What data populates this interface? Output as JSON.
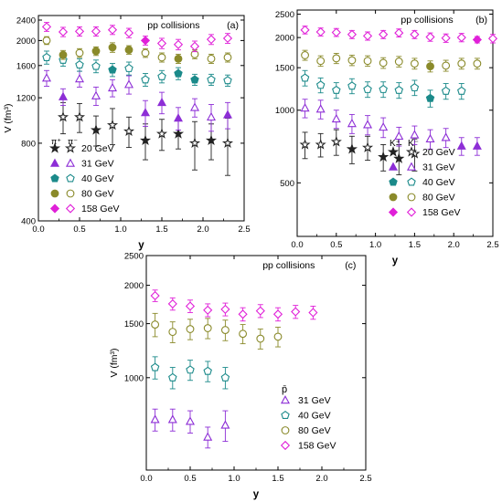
{
  "chart_data": [
    {
      "panel_label": "(a)",
      "type": "scatter",
      "title": "pp collisions",
      "xlabel": "y",
      "ylabel": "V (fm³)",
      "xlim": [
        0,
        2.5
      ],
      "ylim": [
        400,
        2500
      ],
      "yscale": "log",
      "xticks": [
        0.0,
        0.5,
        1.0,
        1.5,
        2.0,
        2.5
      ],
      "xtick_labels": [
        "0.0",
        "0.5",
        "1.0",
        "1.5",
        "2.0",
        "2.5"
      ],
      "yticks": [
        400,
        800,
        1200,
        1600,
        2000,
        2400
      ],
      "ytick_labels": [
        "400",
        "800",
        "1200",
        "1600",
        "2000",
        "2400"
      ],
      "legend_header": [
        "π⁺",
        "π⁻"
      ],
      "legend_placement": "lower-left",
      "series": [
        {
          "name": "20 GeV",
          "color": "#222222",
          "marker": "star",
          "filled": true,
          "x": [
            0.7,
            1.3,
            1.7,
            2.1
          ],
          "y": [
            900,
            820,
            870,
            820
          ],
          "err": [
            120,
            130,
            110,
            130
          ]
        },
        {
          "name": "20 GeV",
          "color": "#222222",
          "marker": "star",
          "filled": false,
          "x": [
            0.3,
            0.5,
            0.9,
            1.1,
            1.5,
            1.9,
            2.3
          ],
          "y": [
            1010,
            1010,
            940,
            890,
            870,
            800,
            800
          ],
          "err": [
            140,
            130,
            150,
            120,
            120,
            170,
            200
          ]
        },
        {
          "name": "31 GeV",
          "color": "#8d2ed6",
          "marker": "triangle",
          "filled": true,
          "x": [
            0.3,
            1.3,
            1.5,
            1.7,
            2.3
          ],
          "y": [
            1210,
            1050,
            1150,
            1000,
            1030
          ],
          "err": [
            90,
            120,
            110,
            100,
            120
          ]
        },
        {
          "name": "31 GeV",
          "color": "#8d2ed6",
          "marker": "triangle",
          "filled": false,
          "x": [
            0.1,
            0.5,
            0.7,
            0.9,
            1.1,
            1.9,
            2.1
          ],
          "y": [
            1430,
            1420,
            1220,
            1310,
            1350,
            1100,
            1010
          ],
          "err": [
            100,
            100,
            100,
            100,
            110,
            90,
            120
          ]
        },
        {
          "name": "40 GeV",
          "color": "#1b8a8a",
          "marker": "pentagon",
          "filled": true,
          "x": [
            0.9,
            1.7,
            1.9
          ],
          "y": [
            1540,
            1490,
            1410
          ],
          "err": [
            90,
            80,
            70
          ]
        },
        {
          "name": "40 GeV",
          "color": "#1b8a8a",
          "marker": "pentagon",
          "filled": false,
          "x": [
            0.1,
            0.3,
            0.5,
            0.7,
            1.1,
            1.3,
            1.5,
            2.1,
            2.3
          ],
          "y": [
            1720,
            1680,
            1610,
            1590,
            1560,
            1410,
            1450,
            1410,
            1400
          ],
          "err": [
            100,
            90,
            90,
            90,
            90,
            80,
            80,
            70,
            70
          ]
        },
        {
          "name": "80 GeV",
          "color": "#8a8a2a",
          "marker": "circle",
          "filled": true,
          "x": [
            0.3,
            0.7,
            0.9,
            1.1,
            1.7
          ],
          "y": [
            1760,
            1820,
            1880,
            1840,
            1700
          ],
          "err": [
            70,
            70,
            80,
            70,
            70
          ]
        },
        {
          "name": "80 GeV",
          "color": "#8a8a2a",
          "marker": "circle",
          "filled": false,
          "x": [
            0.1,
            0.5,
            1.3,
            1.5,
            1.9,
            2.1,
            2.3
          ],
          "y": [
            2000,
            1790,
            1790,
            1720,
            1770,
            1700,
            1720
          ],
          "err": [
            70,
            70,
            70,
            70,
            70,
            70,
            70
          ]
        },
        {
          "name": "158 GeV",
          "color": "#e020d8",
          "marker": "diamond",
          "filled": true,
          "x": [
            1.3
          ],
          "y": [
            2000
          ],
          "err": [
            80
          ]
        },
        {
          "name": "158 GeV",
          "color": "#e020d8",
          "marker": "diamond",
          "filled": false,
          "x": [
            0.1,
            0.3,
            0.5,
            0.7,
            0.9,
            1.1,
            1.5,
            1.7,
            1.9,
            2.1,
            2.3
          ],
          "y": [
            2260,
            2160,
            2170,
            2170,
            2200,
            2140,
            1950,
            1930,
            1900,
            2020,
            2040
          ],
          "err": [
            90,
            90,
            90,
            90,
            90,
            90,
            90,
            90,
            90,
            90,
            90
          ]
        }
      ],
      "legend": [
        {
          "label": "20 GeV",
          "marker": "star",
          "color": "#222222"
        },
        {
          "label": "31 GeV",
          "marker": "triangle",
          "color": "#8d2ed6"
        },
        {
          "label": "40 GeV",
          "marker": "pentagon",
          "color": "#1b8a8a"
        },
        {
          "label": "80 GeV",
          "marker": "circle",
          "color": "#8a8a2a"
        },
        {
          "label": "158 GeV",
          "marker": "diamond",
          "color": "#e020d8"
        }
      ]
    },
    {
      "panel_label": "(b)",
      "type": "scatter",
      "title": "pp collisions",
      "xlabel": "y",
      "ylabel": "",
      "xlim": [
        0,
        2.5
      ],
      "ylim": [
        300,
        2600
      ],
      "yscale": "log",
      "xticks": [
        0.0,
        0.5,
        1.0,
        1.5,
        2.0,
        2.5
      ],
      "xtick_labels": [
        "0.0",
        "0.5",
        "1.0",
        "1.5",
        "2.0",
        "2.5"
      ],
      "yticks": [
        500,
        1000,
        1500,
        2000,
        2500
      ],
      "ytick_labels": [
        "500",
        "1000",
        "1500",
        "2000",
        "2500"
      ],
      "legend_header": [
        "K⁺",
        "K⁻"
      ],
      "legend_placement": "lower-right",
      "series": [
        {
          "name": "20 GeV",
          "color": "#222222",
          "marker": "star",
          "filled": true,
          "x": [
            0.7,
            1.1,
            1.3
          ],
          "y": [
            690,
            640,
            630
          ],
          "err": [
            90,
            80,
            90
          ]
        },
        {
          "name": "20 GeV",
          "color": "#222222",
          "marker": "star",
          "filled": false,
          "x": [
            0.1,
            0.3,
            0.5,
            0.9,
            1.5
          ],
          "y": [
            720,
            720,
            740,
            700,
            660
          ],
          "err": [
            90,
            80,
            90,
            80,
            100
          ]
        },
        {
          "name": "31 GeV",
          "color": "#8d2ed6",
          "marker": "triangle",
          "filled": true,
          "x": [
            2.1,
            2.3
          ],
          "y": [
            710,
            710
          ],
          "err": [
            60,
            60
          ]
        },
        {
          "name": "31 GeV",
          "color": "#8d2ed6",
          "marker": "triangle",
          "filled": false,
          "x": [
            0.1,
            0.3,
            0.5,
            0.7,
            0.9,
            1.1,
            1.3,
            1.5,
            1.7,
            1.9
          ],
          "y": [
            1020,
            1010,
            920,
            880,
            870,
            850,
            780,
            790,
            760,
            770
          ],
          "err": [
            90,
            90,
            80,
            80,
            80,
            80,
            70,
            70,
            70,
            70
          ]
        },
        {
          "name": "40 GeV",
          "color": "#1b8a8a",
          "marker": "pentagon",
          "filled": true,
          "x": [
            1.7
          ],
          "y": [
            1120
          ],
          "err": [
            90
          ]
        },
        {
          "name": "40 GeV",
          "color": "#1b8a8a",
          "marker": "pentagon",
          "filled": false,
          "x": [
            0.1,
            0.3,
            0.5,
            0.7,
            0.9,
            1.1,
            1.3,
            1.5,
            1.9,
            2.1
          ],
          "y": [
            1360,
            1270,
            1210,
            1260,
            1220,
            1220,
            1210,
            1240,
            1200,
            1200
          ],
          "err": [
            100,
            90,
            90,
            90,
            90,
            90,
            90,
            90,
            90,
            90
          ]
        },
        {
          "name": "80 GeV",
          "color": "#8a8a2a",
          "marker": "circle",
          "filled": true,
          "x": [
            1.7
          ],
          "y": [
            1520
          ],
          "err": [
            80
          ]
        },
        {
          "name": "80 GeV",
          "color": "#8a8a2a",
          "marker": "circle",
          "filled": false,
          "x": [
            0.1,
            0.3,
            0.5,
            0.7,
            0.9,
            1.1,
            1.3,
            1.5,
            1.9,
            2.1,
            2.3
          ],
          "y": [
            1690,
            1600,
            1640,
            1610,
            1600,
            1570,
            1590,
            1560,
            1530,
            1560,
            1560
          ],
          "err": [
            80,
            80,
            80,
            80,
            80,
            80,
            80,
            80,
            80,
            80,
            80
          ]
        },
        {
          "name": "158 GeV",
          "color": "#e020d8",
          "marker": "diamond",
          "filled": true,
          "x": [
            2.3
          ],
          "y": [
            1960
          ],
          "err": [
            60
          ]
        },
        {
          "name": "158 GeV",
          "color": "#e020d8",
          "marker": "diamond",
          "filled": false,
          "x": [
            0.1,
            0.3,
            0.5,
            0.7,
            0.9,
            1.1,
            1.3,
            1.5,
            1.7,
            1.9,
            2.1,
            2.5
          ],
          "y": [
            2150,
            2110,
            2100,
            2060,
            2030,
            2060,
            2090,
            2060,
            2010,
            1990,
            2000,
            1980
          ],
          "err": [
            80,
            80,
            80,
            80,
            80,
            80,
            80,
            80,
            80,
            80,
            80,
            80
          ]
        }
      ],
      "legend": [
        {
          "label": "20 GeV",
          "marker": "star",
          "color": "#222222"
        },
        {
          "label": "31 GeV",
          "marker": "triangle",
          "color": "#8d2ed6"
        },
        {
          "label": "40 GeV",
          "marker": "pentagon",
          "color": "#1b8a8a"
        },
        {
          "label": "80 GeV",
          "marker": "circle",
          "color": "#8a8a2a"
        },
        {
          "label": "158 GeV",
          "marker": "diamond",
          "color": "#e020d8"
        }
      ]
    },
    {
      "panel_label": "(c)",
      "type": "scatter",
      "title": "pp collisions",
      "xlabel": "y",
      "ylabel": "V (fm³)",
      "xlim": [
        0,
        2.5
      ],
      "ylim": [
        500,
        2500
      ],
      "yscale": "log",
      "xticks": [
        0.0,
        0.5,
        1.0,
        1.5,
        2.0,
        2.5
      ],
      "xtick_labels": [
        "0.0",
        "0.5",
        "1.0",
        "1.5",
        "2.0",
        "2.5"
      ],
      "yticks": [
        1000,
        1500,
        2000,
        2500
      ],
      "ytick_labels": [
        "1000",
        "1500",
        "2000",
        "2500"
      ],
      "legend_header": [
        "p̄"
      ],
      "legend_placement": "lower-right",
      "series": [
        {
          "name": "31 GeV",
          "color": "#8d2ed6",
          "marker": "triangle",
          "filled": false,
          "x": [
            0.1,
            0.3,
            0.5,
            0.7,
            0.9
          ],
          "y": [
            730,
            730,
            720,
            640,
            700
          ],
          "err": [
            60,
            60,
            60,
            50,
            80
          ]
        },
        {
          "name": "40 GeV",
          "color": "#1b8a8a",
          "marker": "pentagon",
          "filled": false,
          "x": [
            0.1,
            0.3,
            0.5,
            0.7,
            0.9
          ],
          "y": [
            1080,
            1000,
            1060,
            1050,
            1000
          ],
          "err": [
            90,
            80,
            80,
            80,
            80
          ]
        },
        {
          "name": "80 GeV",
          "color": "#8a8a2a",
          "marker": "circle",
          "filled": false,
          "x": [
            0.1,
            0.3,
            0.5,
            0.7,
            0.9,
            1.1,
            1.3,
            1.5
          ],
          "y": [
            1490,
            1410,
            1440,
            1450,
            1430,
            1390,
            1340,
            1360
          ],
          "err": [
            130,
            110,
            110,
            110,
            110,
            100,
            100,
            100
          ]
        },
        {
          "name": "158 GeV",
          "color": "#e020d8",
          "marker": "diamond",
          "filled": false,
          "x": [
            0.1,
            0.3,
            0.5,
            0.7,
            0.9,
            1.1,
            1.3,
            1.5,
            1.7,
            1.9
          ],
          "y": [
            1850,
            1740,
            1710,
            1660,
            1670,
            1610,
            1650,
            1610,
            1640,
            1630
          ],
          "err": [
            80,
            80,
            80,
            80,
            80,
            80,
            80,
            80,
            80,
            80
          ]
        }
      ],
      "legend": [
        {
          "label": "31 GeV",
          "marker": "triangle",
          "color": "#8d2ed6"
        },
        {
          "label": "40 GeV",
          "marker": "pentagon",
          "color": "#1b8a8a"
        },
        {
          "label": "80 GeV",
          "marker": "circle",
          "color": "#8a8a2a"
        },
        {
          "label": "158 GeV",
          "marker": "diamond",
          "color": "#e020d8"
        }
      ]
    }
  ]
}
